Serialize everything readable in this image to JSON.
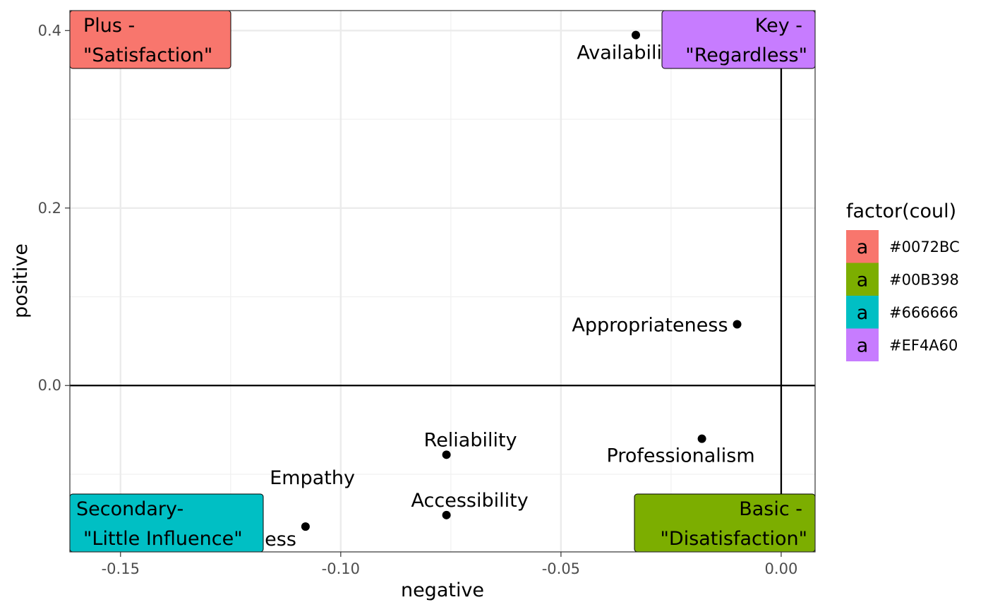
{
  "chart_data": {
    "type": "scatter",
    "xlabel": "negative",
    "ylabel": "positive",
    "xlim": [
      -0.1615,
      0.0077
    ],
    "ylim": [
      -0.1875,
      0.4225
    ],
    "x_ticks": [
      -0.15,
      -0.1,
      -0.05,
      0.0
    ],
    "x_tick_labels": [
      "-0.15",
      "-0.10",
      "-0.05",
      "0.00"
    ],
    "y_ticks": [
      0.0,
      0.2,
      0.4
    ],
    "y_tick_labels": [
      "0.0",
      "0.2",
      "0.4"
    ],
    "x_minor": [
      -0.125,
      -0.075,
      -0.025
    ],
    "y_minor": [
      -0.1,
      0.1,
      0.3
    ],
    "grid": true,
    "reference_lines": {
      "x": 0.0,
      "y": 0.0
    },
    "points": [
      {
        "label": "Availability",
        "x": -0.033,
        "y": 0.395
      },
      {
        "label": "Appropriateness",
        "x": -0.01,
        "y": 0.069
      },
      {
        "label": "Professionalism",
        "x": -0.018,
        "y": -0.06
      },
      {
        "label": "Reliability",
        "x": -0.076,
        "y": -0.078
      },
      {
        "label": "Accessibility",
        "x": -0.076,
        "y": -0.146
      },
      {
        "label": "Empathy",
        "x": -0.115,
        "y": -0.124
      },
      {
        "label": "Responsiveness",
        "x": -0.108,
        "y": -0.159
      }
    ],
    "quadrant_boxes": [
      {
        "lines": [
          "Plus -",
          "\"Satisfaction\""
        ],
        "color": "#F8766D"
      },
      {
        "lines": [
          "Key -",
          "\"Regardless\""
        ],
        "color": "#C77CFF"
      },
      {
        "lines": [
          "Secondary-",
          "\"Little Influence\""
        ],
        "color": "#00BFC4"
      },
      {
        "lines": [
          "Basic -",
          "\"Disatisfaction\""
        ],
        "color": "#7CAE00"
      }
    ],
    "legend": {
      "title": "factor(coul)",
      "position": "right",
      "key_glyph": "a",
      "items": [
        {
          "label": "#0072BC",
          "color": "#F8766D"
        },
        {
          "label": "#00B398",
          "color": "#7CAE00"
        },
        {
          "label": "#666666",
          "color": "#00BFC4"
        },
        {
          "label": "#EF4A60",
          "color": "#C77CFF"
        }
      ]
    }
  }
}
